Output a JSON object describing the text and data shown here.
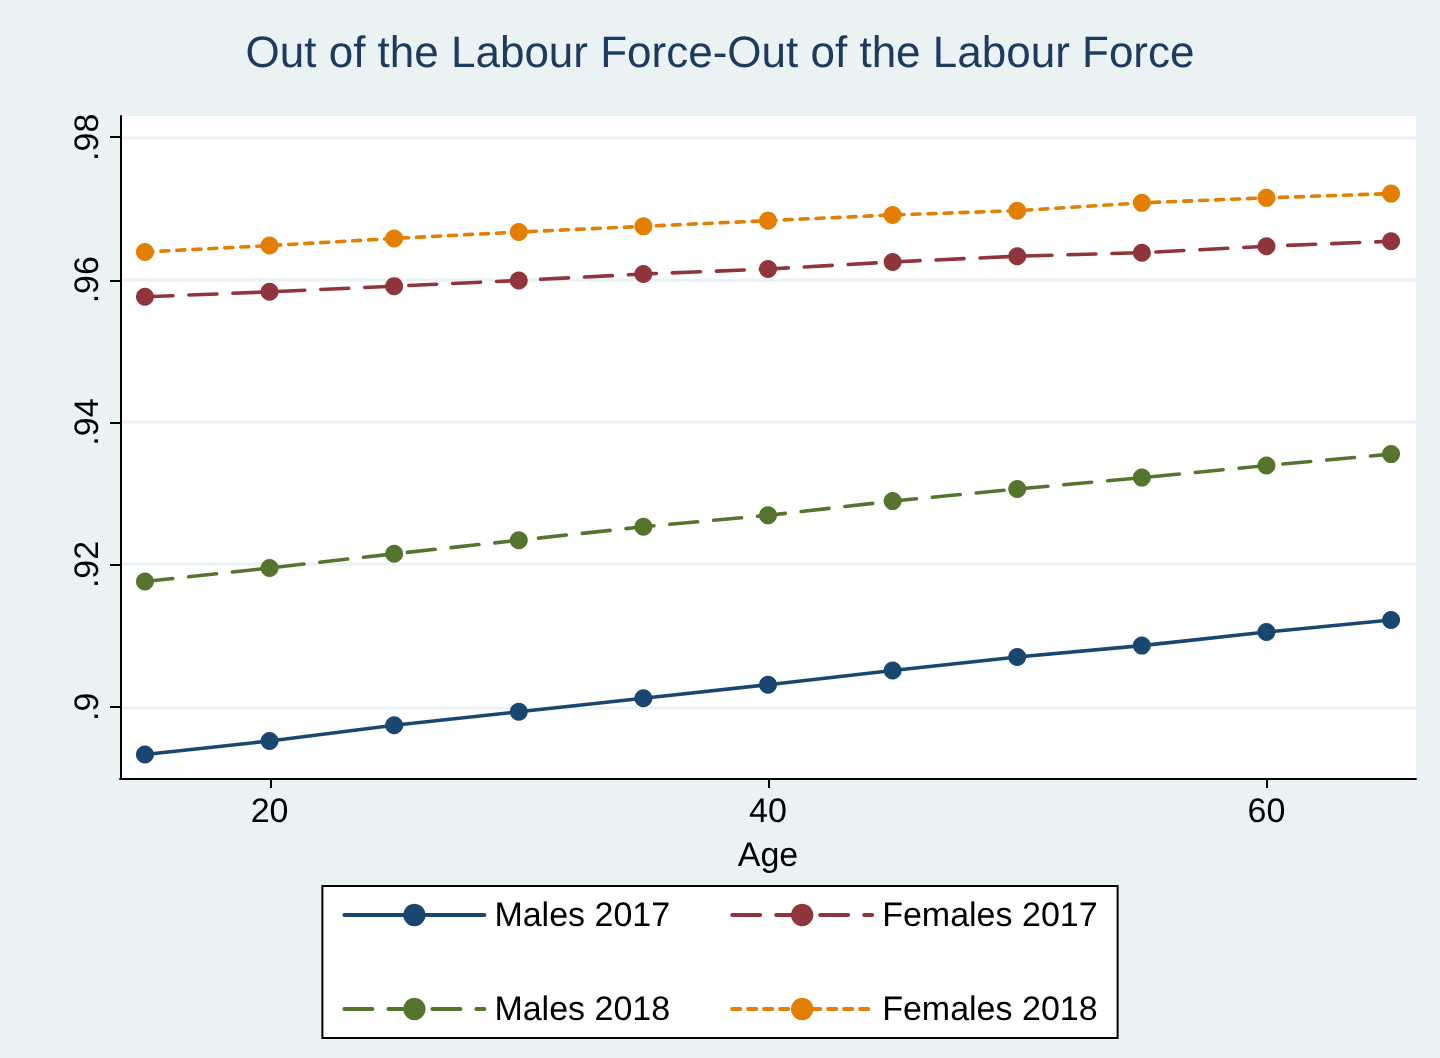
{
  "chart_data": {
    "type": "line",
    "title": "Out of the Labour Force-Out of the Labour Force",
    "xlabel": "Age",
    "x": [
      15,
      20,
      25,
      30,
      35,
      40,
      45,
      50,
      55,
      60,
      65
    ],
    "series": [
      {
        "name": "Males 2017",
        "color": "#1a476f",
        "line_style": "solid",
        "values": [
          0.8933,
          0.8952,
          0.8974,
          0.8993,
          0.9012,
          0.9031,
          0.9051,
          0.907,
          0.9086,
          0.9105,
          0.9122
        ]
      },
      {
        "name": "Females 2017",
        "color": "#90353b",
        "line_style": "dashed",
        "values": [
          0.9576,
          0.9583,
          0.9591,
          0.9599,
          0.9608,
          0.9615,
          0.9625,
          0.9633,
          0.9638,
          0.9647,
          0.9654
        ]
      },
      {
        "name": "Males 2018",
        "color": "#55752f",
        "line_style": "dashed",
        "values": [
          0.9176,
          0.9195,
          0.9215,
          0.9234,
          0.9253,
          0.9269,
          0.9289,
          0.9306,
          0.9322,
          0.9339,
          0.9355
        ]
      },
      {
        "name": "Females 2018",
        "color": "#e37e00",
        "line_style": "dotted",
        "values": [
          0.9639,
          0.9648,
          0.9658,
          0.9667,
          0.9675,
          0.9683,
          0.9691,
          0.9697,
          0.9708,
          0.9715,
          0.9721
        ]
      }
    ],
    "xlim": [
      14,
      66
    ],
    "xticks": [
      20,
      40,
      60
    ],
    "ylim": [
      0.89,
      0.983
    ],
    "yticks": [
      {
        "value": 0.9,
        "label": ".9"
      },
      {
        "value": 0.92,
        "label": ".92"
      },
      {
        "value": 0.94,
        "label": ".94"
      },
      {
        "value": 0.96,
        "label": ".96"
      },
      {
        "value": 0.98,
        "label": ".98"
      }
    ],
    "grid": "y",
    "legend": "bottom",
    "marker": "circle"
  }
}
